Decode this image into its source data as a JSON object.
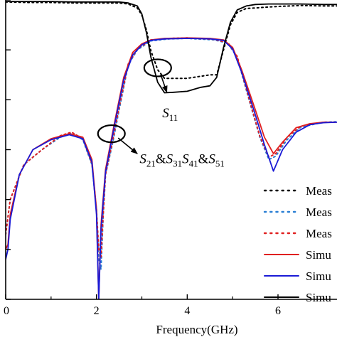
{
  "chart_data": {
    "type": "line",
    "xlabel": "Frequency(GHz)",
    "xlim": [
      0,
      7.3
    ],
    "ylim": [
      -60,
      0
    ],
    "x_ticks": [
      0,
      2,
      4,
      6
    ],
    "x_tick_labels": [
      "0",
      "2",
      "4",
      "6"
    ],
    "grid": false,
    "legend_position": "bottom-right",
    "annotations": [
      {
        "parts": [
          {
            "t": "S",
            "sub": "11"
          }
        ],
        "ellipse_at": [
          3.35,
          -13.6
        ],
        "arrow_to": [
          3.55,
          -18.5
        ],
        "text_at": [
          3.45,
          -23.5
        ]
      },
      {
        "parts": [
          {
            "t": "S",
            "sub": "21"
          },
          {
            "t": "&S",
            "sub": "31"
          },
          {
            "t": "S",
            "sub": "41"
          },
          {
            "t": "&S",
            "sub": "51"
          }
        ],
        "ellipse_at": [
          2.33,
          -26.8
        ],
        "arrow_to": [
          2.9,
          -30.8
        ],
        "text_at": [
          2.95,
          -32.7
        ]
      }
    ],
    "series": [
      {
        "name": "Meas",
        "color": "#000000",
        "style": "dotted",
        "x": [
          0,
          0.5,
          1,
          1.5,
          2,
          2.5,
          2.7,
          2.9,
          3.0,
          3.1,
          3.2,
          3.35,
          3.5,
          4.0,
          4.5,
          4.65,
          4.8,
          4.95,
          5.1,
          5.3,
          5.5,
          5.8,
          6.0,
          6.5,
          7.0,
          7.3
        ],
        "y": [
          -0.4,
          -0.5,
          -0.5,
          -0.6,
          -0.6,
          -0.6,
          -0.8,
          -1.6,
          -3.0,
          -6.0,
          -10.2,
          -14.0,
          -15.7,
          -15.7,
          -15.0,
          -15.0,
          -10.0,
          -5.0,
          -2.5,
          -1.7,
          -1.6,
          -1.4,
          -1.3,
          -1.1,
          -1.2,
          -1.2
        ]
      },
      {
        "name": "Meas",
        "color": "#2a7fd4",
        "style": "dotted",
        "x": [
          0,
          0.1,
          0.4,
          0.8,
          1.2,
          1.45,
          1.7,
          1.9,
          2.0,
          2.05,
          2.1,
          2.15,
          2.2,
          2.35,
          2.5,
          2.7,
          2.9,
          3.2,
          3.6,
          4.0,
          4.6,
          4.9,
          5.1,
          5.4,
          5.6,
          5.8,
          5.95,
          6.2,
          6.5,
          7.0,
          7.3
        ],
        "y": [
          -47,
          -40,
          -33,
          -30,
          -27.5,
          -26.7,
          -28,
          -33,
          -42,
          -52,
          -54,
          -43,
          -35,
          -29,
          -22,
          -13,
          -10,
          -8.2,
          -7.8,
          -7.7,
          -8.0,
          -8.7,
          -11.5,
          -21.2,
          -27.5,
          -32,
          -31.3,
          -28,
          -25.5,
          -24.5,
          -24.4
        ]
      },
      {
        "name": "Meas",
        "color": "#e02020",
        "style": "dotted",
        "x": [
          0,
          0.1,
          0.4,
          0.8,
          1.2,
          1.45,
          1.7,
          1.9,
          2.0,
          2.05,
          2.1,
          2.15,
          2.2,
          2.35,
          2.5,
          2.7,
          2.9,
          3.2,
          3.6,
          4.0,
          4.6,
          4.9,
          5.1,
          5.4,
          5.6,
          5.8,
          5.95,
          6.2,
          6.5,
          7.0,
          7.3
        ],
        "y": [
          -47,
          -40,
          -33,
          -30,
          -27.2,
          -26.5,
          -27.8,
          -32.8,
          -42,
          -50,
          -51.5,
          -43,
          -35,
          -28.5,
          -21.5,
          -12.8,
          -9.8,
          -8.0,
          -7.7,
          -7.6,
          -7.9,
          -8.6,
          -11.3,
          -21,
          -27.3,
          -31.5,
          -30.8,
          -27.5,
          -25.3,
          -24.5,
          -24.5
        ]
      },
      {
        "name": "Simu",
        "color": "#e02020",
        "style": "solid",
        "x": [
          0,
          0.05,
          0.1,
          0.3,
          0.6,
          1.0,
          1.4,
          1.7,
          1.9,
          2.0,
          2.05,
          2.1,
          2.2,
          2.4,
          2.6,
          2.8,
          3.0,
          3.2,
          3.5,
          4.0,
          4.5,
          4.8,
          5.0,
          5.2,
          5.5,
          5.7,
          5.9,
          6.1,
          6.4,
          6.7,
          7.0,
          7.3
        ],
        "y": [
          -50,
          -49,
          -43,
          -35,
          -30,
          -27.8,
          -26.8,
          -27.5,
          -32,
          -42,
          -60,
          -45,
          -34,
          -24.5,
          -15.5,
          -10.5,
          -8.8,
          -8.0,
          -7.7,
          -7.6,
          -7.7,
          -8.0,
          -9.5,
          -14,
          -22,
          -27.5,
          -30.8,
          -28.5,
          -25.6,
          -24.8,
          -24.5,
          -24.5
        ]
      },
      {
        "name": "Simu",
        "color": "#1a1ad6",
        "style": "solid",
        "x": [
          0,
          0.05,
          0.1,
          0.3,
          0.6,
          1.0,
          1.4,
          1.7,
          1.9,
          2.0,
          2.05,
          2.1,
          2.2,
          2.4,
          2.6,
          2.8,
          3.0,
          3.2,
          3.5,
          4.0,
          4.5,
          4.8,
          5.0,
          5.2,
          5.5,
          5.7,
          5.9,
          6.1,
          6.4,
          6.7,
          7.0,
          7.3
        ],
        "y": [
          -52,
          -50,
          -44,
          -35,
          -30,
          -28,
          -27,
          -27.8,
          -32.5,
          -43,
          -60,
          -46,
          -34.5,
          -25,
          -16,
          -11,
          -9.0,
          -8.1,
          -7.8,
          -7.7,
          -7.8,
          -8.1,
          -9.8,
          -14.5,
          -23,
          -29,
          -34.3,
          -30,
          -26.5,
          -25,
          -24.6,
          -24.5
        ]
      },
      {
        "name": "Simu",
        "color": "#000000",
        "style": "solid",
        "x": [
          0,
          0.5,
          1,
          1.5,
          2,
          2.5,
          2.7,
          2.9,
          3.0,
          3.1,
          3.2,
          3.35,
          3.5,
          3.7,
          4.0,
          4.3,
          4.5,
          4.65,
          4.8,
          4.95,
          5.1,
          5.3,
          5.5,
          5.8,
          6.0,
          6.5,
          7.0,
          7.3
        ],
        "y": [
          -0.3,
          -0.3,
          -0.3,
          -0.4,
          -0.4,
          -0.4,
          -0.6,
          -1.2,
          -2.8,
          -6.5,
          -11.5,
          -16.5,
          -18.6,
          -18.5,
          -18.3,
          -17.5,
          -17.2,
          -15.5,
          -9.5,
          -4.5,
          -2.0,
          -1.2,
          -0.9,
          -0.8,
          -0.8,
          -0.8,
          -0.9,
          -0.9
        ]
      }
    ]
  }
}
